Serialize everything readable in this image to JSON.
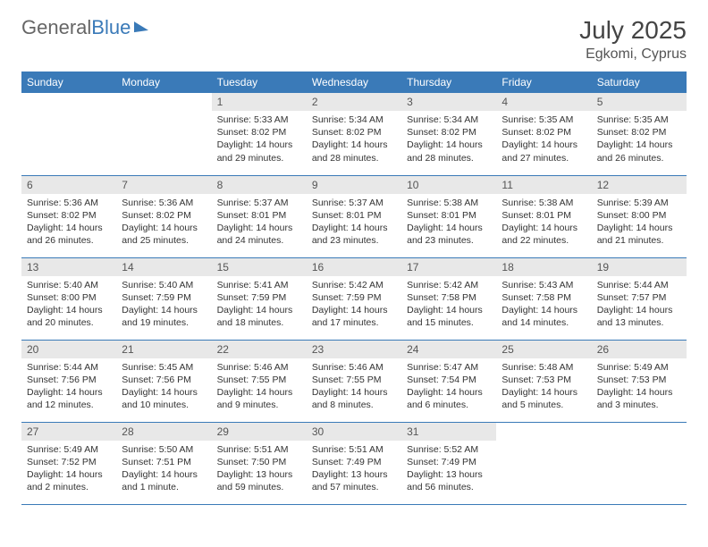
{
  "brand": {
    "part1": "General",
    "part2": "Blue"
  },
  "title": "July 2025",
  "location": "Egkomi, Cyprus",
  "colors": {
    "header_bg": "#3a7ab8",
    "header_text": "#ffffff",
    "daynum_bg": "#e8e8e8",
    "body_text": "#333333",
    "page_bg": "#ffffff"
  },
  "weekdays": [
    "Sunday",
    "Monday",
    "Tuesday",
    "Wednesday",
    "Thursday",
    "Friday",
    "Saturday"
  ],
  "weeks": [
    [
      null,
      null,
      {
        "n": "1",
        "sr": "Sunrise: 5:33 AM",
        "ss": "Sunset: 8:02 PM",
        "dl1": "Daylight: 14 hours",
        "dl2": "and 29 minutes."
      },
      {
        "n": "2",
        "sr": "Sunrise: 5:34 AM",
        "ss": "Sunset: 8:02 PM",
        "dl1": "Daylight: 14 hours",
        "dl2": "and 28 minutes."
      },
      {
        "n": "3",
        "sr": "Sunrise: 5:34 AM",
        "ss": "Sunset: 8:02 PM",
        "dl1": "Daylight: 14 hours",
        "dl2": "and 28 minutes."
      },
      {
        "n": "4",
        "sr": "Sunrise: 5:35 AM",
        "ss": "Sunset: 8:02 PM",
        "dl1": "Daylight: 14 hours",
        "dl2": "and 27 minutes."
      },
      {
        "n": "5",
        "sr": "Sunrise: 5:35 AM",
        "ss": "Sunset: 8:02 PM",
        "dl1": "Daylight: 14 hours",
        "dl2": "and 26 minutes."
      }
    ],
    [
      {
        "n": "6",
        "sr": "Sunrise: 5:36 AM",
        "ss": "Sunset: 8:02 PM",
        "dl1": "Daylight: 14 hours",
        "dl2": "and 26 minutes."
      },
      {
        "n": "7",
        "sr": "Sunrise: 5:36 AM",
        "ss": "Sunset: 8:02 PM",
        "dl1": "Daylight: 14 hours",
        "dl2": "and 25 minutes."
      },
      {
        "n": "8",
        "sr": "Sunrise: 5:37 AM",
        "ss": "Sunset: 8:01 PM",
        "dl1": "Daylight: 14 hours",
        "dl2": "and 24 minutes."
      },
      {
        "n": "9",
        "sr": "Sunrise: 5:37 AM",
        "ss": "Sunset: 8:01 PM",
        "dl1": "Daylight: 14 hours",
        "dl2": "and 23 minutes."
      },
      {
        "n": "10",
        "sr": "Sunrise: 5:38 AM",
        "ss": "Sunset: 8:01 PM",
        "dl1": "Daylight: 14 hours",
        "dl2": "and 23 minutes."
      },
      {
        "n": "11",
        "sr": "Sunrise: 5:38 AM",
        "ss": "Sunset: 8:01 PM",
        "dl1": "Daylight: 14 hours",
        "dl2": "and 22 minutes."
      },
      {
        "n": "12",
        "sr": "Sunrise: 5:39 AM",
        "ss": "Sunset: 8:00 PM",
        "dl1": "Daylight: 14 hours",
        "dl2": "and 21 minutes."
      }
    ],
    [
      {
        "n": "13",
        "sr": "Sunrise: 5:40 AM",
        "ss": "Sunset: 8:00 PM",
        "dl1": "Daylight: 14 hours",
        "dl2": "and 20 minutes."
      },
      {
        "n": "14",
        "sr": "Sunrise: 5:40 AM",
        "ss": "Sunset: 7:59 PM",
        "dl1": "Daylight: 14 hours",
        "dl2": "and 19 minutes."
      },
      {
        "n": "15",
        "sr": "Sunrise: 5:41 AM",
        "ss": "Sunset: 7:59 PM",
        "dl1": "Daylight: 14 hours",
        "dl2": "and 18 minutes."
      },
      {
        "n": "16",
        "sr": "Sunrise: 5:42 AM",
        "ss": "Sunset: 7:59 PM",
        "dl1": "Daylight: 14 hours",
        "dl2": "and 17 minutes."
      },
      {
        "n": "17",
        "sr": "Sunrise: 5:42 AM",
        "ss": "Sunset: 7:58 PM",
        "dl1": "Daylight: 14 hours",
        "dl2": "and 15 minutes."
      },
      {
        "n": "18",
        "sr": "Sunrise: 5:43 AM",
        "ss": "Sunset: 7:58 PM",
        "dl1": "Daylight: 14 hours",
        "dl2": "and 14 minutes."
      },
      {
        "n": "19",
        "sr": "Sunrise: 5:44 AM",
        "ss": "Sunset: 7:57 PM",
        "dl1": "Daylight: 14 hours",
        "dl2": "and 13 minutes."
      }
    ],
    [
      {
        "n": "20",
        "sr": "Sunrise: 5:44 AM",
        "ss": "Sunset: 7:56 PM",
        "dl1": "Daylight: 14 hours",
        "dl2": "and 12 minutes."
      },
      {
        "n": "21",
        "sr": "Sunrise: 5:45 AM",
        "ss": "Sunset: 7:56 PM",
        "dl1": "Daylight: 14 hours",
        "dl2": "and 10 minutes."
      },
      {
        "n": "22",
        "sr": "Sunrise: 5:46 AM",
        "ss": "Sunset: 7:55 PM",
        "dl1": "Daylight: 14 hours",
        "dl2": "and 9 minutes."
      },
      {
        "n": "23",
        "sr": "Sunrise: 5:46 AM",
        "ss": "Sunset: 7:55 PM",
        "dl1": "Daylight: 14 hours",
        "dl2": "and 8 minutes."
      },
      {
        "n": "24",
        "sr": "Sunrise: 5:47 AM",
        "ss": "Sunset: 7:54 PM",
        "dl1": "Daylight: 14 hours",
        "dl2": "and 6 minutes."
      },
      {
        "n": "25",
        "sr": "Sunrise: 5:48 AM",
        "ss": "Sunset: 7:53 PM",
        "dl1": "Daylight: 14 hours",
        "dl2": "and 5 minutes."
      },
      {
        "n": "26",
        "sr": "Sunrise: 5:49 AM",
        "ss": "Sunset: 7:53 PM",
        "dl1": "Daylight: 14 hours",
        "dl2": "and 3 minutes."
      }
    ],
    [
      {
        "n": "27",
        "sr": "Sunrise: 5:49 AM",
        "ss": "Sunset: 7:52 PM",
        "dl1": "Daylight: 14 hours",
        "dl2": "and 2 minutes."
      },
      {
        "n": "28",
        "sr": "Sunrise: 5:50 AM",
        "ss": "Sunset: 7:51 PM",
        "dl1": "Daylight: 14 hours",
        "dl2": "and 1 minute."
      },
      {
        "n": "29",
        "sr": "Sunrise: 5:51 AM",
        "ss": "Sunset: 7:50 PM",
        "dl1": "Daylight: 13 hours",
        "dl2": "and 59 minutes."
      },
      {
        "n": "30",
        "sr": "Sunrise: 5:51 AM",
        "ss": "Sunset: 7:49 PM",
        "dl1": "Daylight: 13 hours",
        "dl2": "and 57 minutes."
      },
      {
        "n": "31",
        "sr": "Sunrise: 5:52 AM",
        "ss": "Sunset: 7:49 PM",
        "dl1": "Daylight: 13 hours",
        "dl2": "and 56 minutes."
      },
      null,
      null
    ]
  ]
}
